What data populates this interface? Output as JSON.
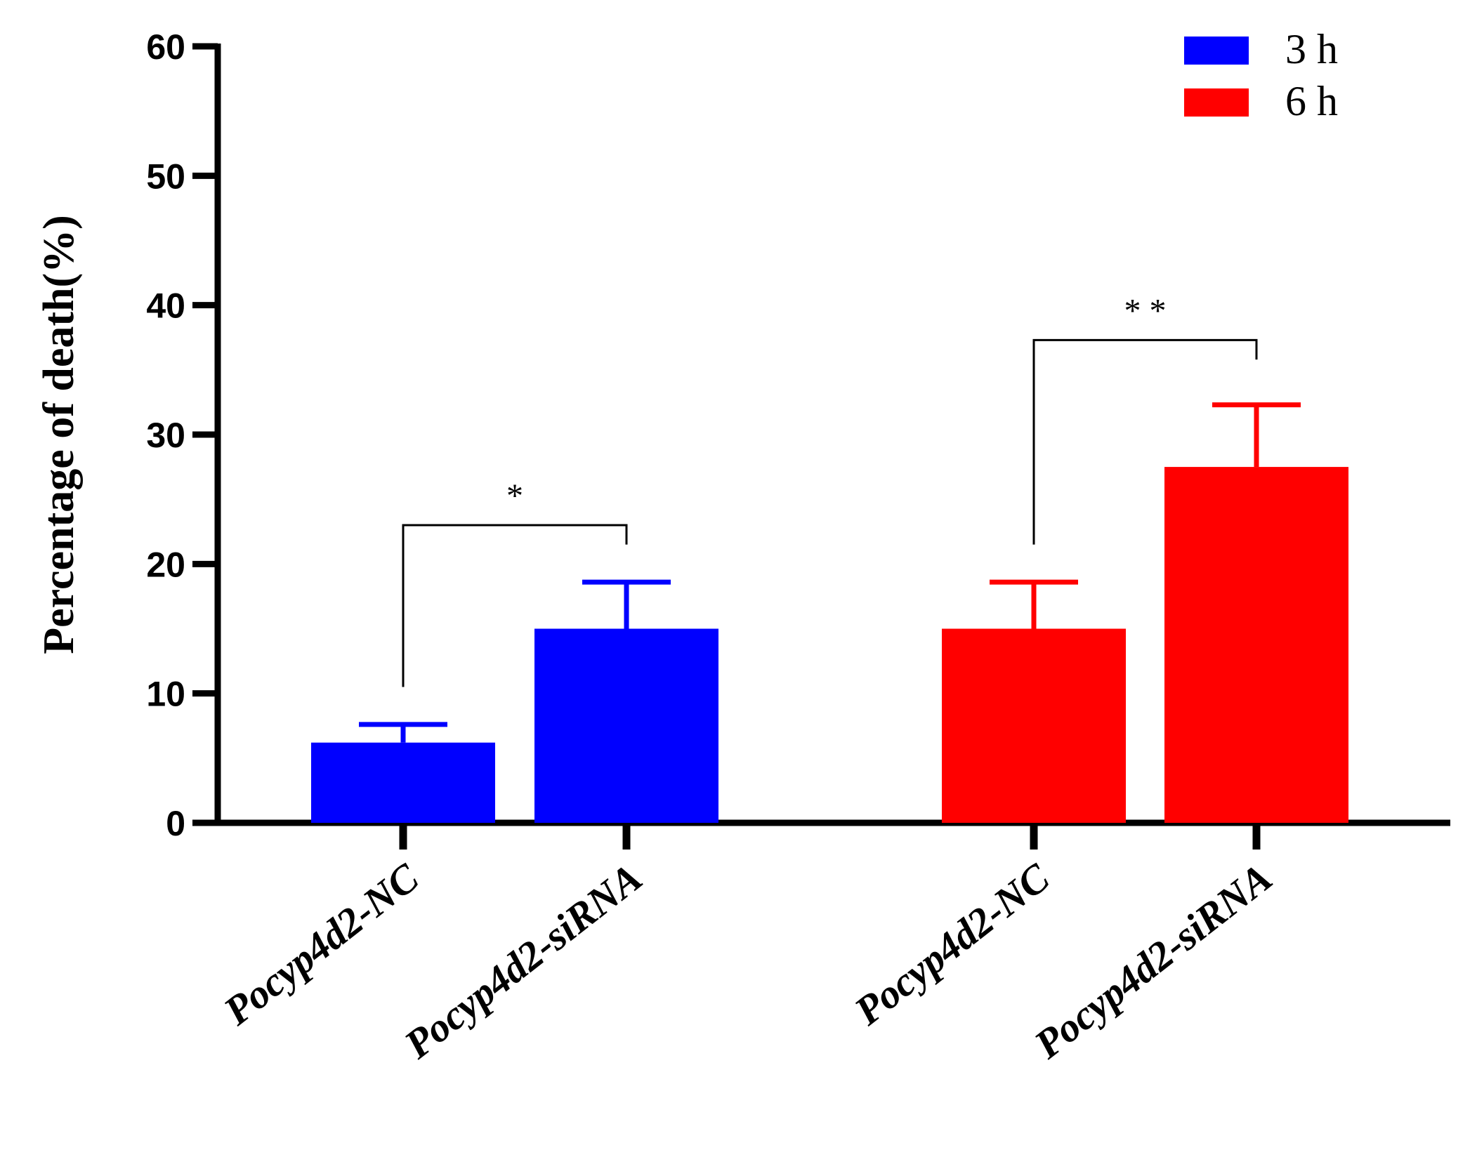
{
  "chart_data": {
    "type": "bar",
    "title": "",
    "xlabel": "",
    "ylabel": "Percentage of death(%)",
    "ylim": [
      0,
      60
    ],
    "yticks": [
      0,
      10,
      20,
      30,
      40,
      50,
      60
    ],
    "grid": false,
    "legend_position": "top-right",
    "series": [
      {
        "name": "3 h",
        "color": "#0000ff",
        "bars": [
          {
            "category": "Pocyp4d2-NC",
            "value": 6.2,
            "error": 1.4
          },
          {
            "category": "Pocyp4d2-siRNA",
            "value": 15.0,
            "error": 3.6
          }
        ]
      },
      {
        "name": "6 h",
        "color": "#ff0000",
        "bars": [
          {
            "category": "Pocyp4d2-NC",
            "value": 15.0,
            "error": 3.6
          },
          {
            "category": "Pocyp4d2-siRNA",
            "value": 27.5,
            "error": 4.8
          }
        ]
      }
    ],
    "annotations": [
      {
        "label": "*",
        "series": "3 h",
        "from": "Pocyp4d2-NC",
        "to": "Pocyp4d2-siRNA",
        "bracket_y": 23.0,
        "left_end": 10.5,
        "right_end": 21.5
      },
      {
        "label": "* *",
        "series": "6 h",
        "from": "Pocyp4d2-NC",
        "to": "Pocyp4d2-siRNA",
        "bracket_y": 37.3,
        "left_end": 21.5,
        "right_end": 35.8
      }
    ]
  }
}
